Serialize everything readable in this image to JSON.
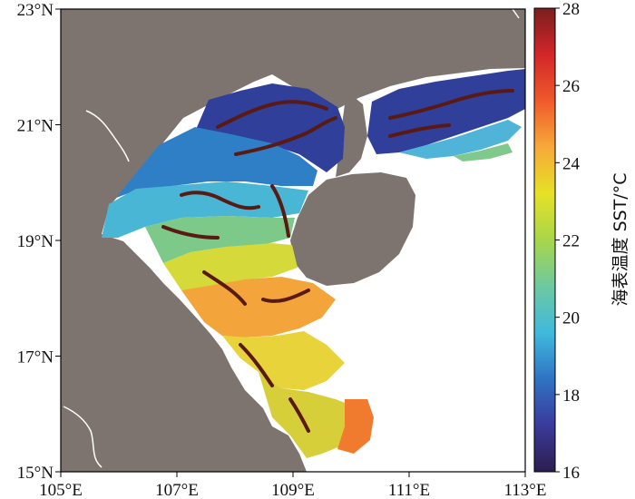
{
  "map": {
    "x_axis": {
      "unit": "°E",
      "ticks": [
        {
          "value": 105,
          "label": "105°E"
        },
        {
          "value": 107,
          "label": "107°E"
        },
        {
          "value": 109,
          "label": "109°E"
        },
        {
          "value": 111,
          "label": "111°E"
        },
        {
          "value": 113,
          "label": "113°E"
        }
      ],
      "range": [
        105,
        113
      ]
    },
    "y_axis": {
      "unit": "°N",
      "ticks": [
        {
          "value": 23,
          "label": "23°N"
        },
        {
          "value": 21,
          "label": "21°N"
        },
        {
          "value": 19,
          "label": "19°N"
        },
        {
          "value": 17,
          "label": "17°N"
        },
        {
          "value": 15,
          "label": "15°N"
        }
      ],
      "range": [
        15,
        23
      ]
    },
    "colors": {
      "land": "#7d746f",
      "nodata": "#ffffff",
      "front": "#5a1a14"
    }
  },
  "colorbar": {
    "label": "海表温度 SST/°C",
    "range": [
      16,
      28
    ],
    "ticks": [
      {
        "value": 28,
        "label": "28"
      },
      {
        "value": 26,
        "label": "26"
      },
      {
        "value": 24,
        "label": "24"
      },
      {
        "value": 22,
        "label": "22"
      },
      {
        "value": 20,
        "label": "20"
      },
      {
        "value": 18,
        "label": "18"
      },
      {
        "value": 16,
        "label": "16"
      }
    ],
    "stops": [
      "#2d1e4e",
      "#3a3a9a",
      "#2f73c4",
      "#41b9dd",
      "#6dc9a0",
      "#a8d64a",
      "#e6e126",
      "#f6a93a",
      "#ef5a2b",
      "#d2262a",
      "#7a1e1e"
    ]
  }
}
